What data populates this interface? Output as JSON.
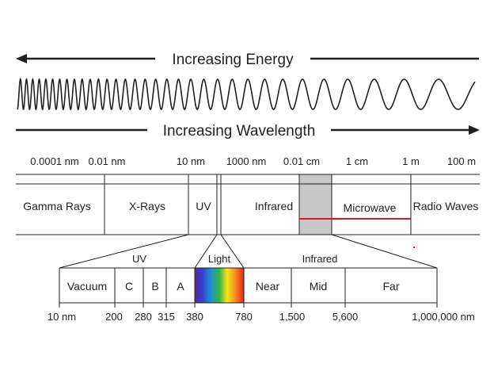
{
  "header": {
    "energy_label": "Increasing Energy",
    "wavelength_label": "Increasing Wavelength"
  },
  "scale": {
    "ticks": [
      "0.0001 nm",
      "0.01 nm",
      "10 nm",
      "1000 nm",
      "0.01 cm",
      "1 cm",
      "1 m",
      "100 m"
    ]
  },
  "bands": [
    "Gamma Rays",
    "X-Rays",
    "UV",
    "Infrared",
    "Microwave",
    "Radio Waves"
  ],
  "detail": {
    "groups": [
      "UV",
      "Light",
      "Infrared"
    ],
    "cells": [
      "Vacuum",
      "C",
      "B",
      "A",
      "Near",
      "Mid",
      "Far"
    ],
    "ticks": [
      "10 nm",
      "200",
      "280",
      "315",
      "380",
      "780",
      "1,500",
      "5,600",
      "1,000,000 nm"
    ]
  },
  "colors": {
    "line": "#231f20",
    "microwave_fill": "#c8c8c8",
    "marker_red": "#e3111e",
    "spectrum": [
      "#5b2a86",
      "#3a3bd1",
      "#1f8ed8",
      "#2fb34a",
      "#f2e81a",
      "#f7941d",
      "#e32119"
    ]
  },
  "icons": [
    "arrow-left-icon",
    "arrow-right-icon",
    "wave-icon"
  ]
}
